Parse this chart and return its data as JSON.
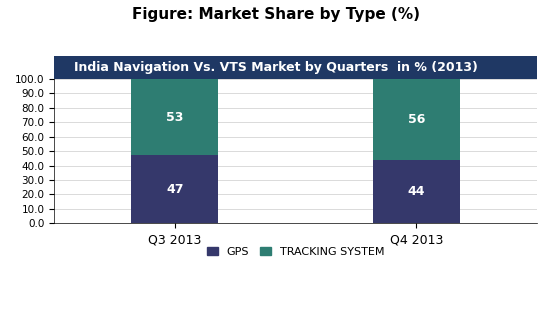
{
  "title": "Figure: Market Share by Type (%)",
  "subtitle": "India Navigation Vs. VTS Market by Quarters  in % (2013)",
  "categories": [
    "Q3 2013",
    "Q4 2013"
  ],
  "gps_values": [
    47,
    44
  ],
  "tracking_values": [
    53,
    56
  ],
  "gps_color": "#35386B",
  "tracking_color": "#2E7D72",
  "subtitle_bg_color": "#1F3864",
  "subtitle_text_color": "#FFFFFF",
  "title_fontsize": 11,
  "subtitle_fontsize": 9,
  "ylim": [
    0,
    100
  ],
  "yticks": [
    0.0,
    10.0,
    20.0,
    30.0,
    40.0,
    50.0,
    60.0,
    70.0,
    80.0,
    90.0,
    100.0
  ],
  "bar_width": 0.18,
  "bar_positions": [
    0.25,
    0.75
  ],
  "label_gps": "GPS",
  "label_tracking": "TRACKING SYSTEM",
  "annotation_color": "#FFFFFF",
  "annotation_fontsize": 9
}
